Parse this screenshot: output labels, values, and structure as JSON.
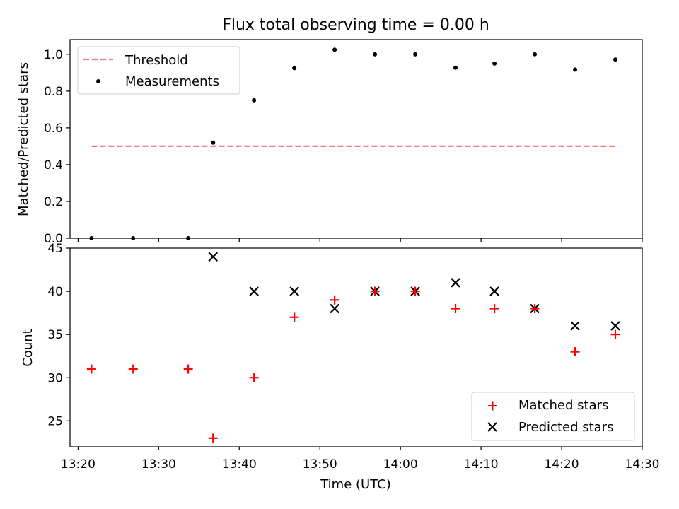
{
  "title": "Flux total observing time = 0.00 h",
  "colors": {
    "threshold": "#f08080",
    "measurement": "#000000",
    "matched": "#ff0000",
    "predicted": "#000000"
  },
  "chart_data": [
    {
      "type": "scatter",
      "ylabel": "Matched/Predicted stars",
      "ylim": [
        0,
        1.08
      ],
      "xlim": [
        "13:19",
        "14:30"
      ],
      "yticks": [
        "0.0",
        "0.2",
        "0.4",
        "0.6",
        "0.8",
        "1.0"
      ],
      "legend": {
        "placement": "top-left",
        "entries": [
          "Threshold",
          "Measurements"
        ]
      },
      "series": [
        {
          "name": "Threshold",
          "style": "dashed-line",
          "x": [
            "13:21:40",
            "14:26:40"
          ],
          "y": [
            0.5,
            0.5
          ]
        },
        {
          "name": "Measurements",
          "style": "dot",
          "x": [
            "13:21:40",
            "13:26:50",
            "13:33:40",
            "13:36:45",
            "13:41:50",
            "13:46:50",
            "13:51:50",
            "13:56:50",
            "14:01:50",
            "14:06:50",
            "14:11:40",
            "14:16:40",
            "14:21:40",
            "14:26:40"
          ],
          "y": [
            0.0,
            0.0,
            0.0,
            0.52,
            0.75,
            0.925,
            1.025,
            1.0,
            1.0,
            0.927,
            0.95,
            1.0,
            0.917,
            0.972
          ]
        }
      ]
    },
    {
      "type": "scatter",
      "xlabel": "Time (UTC)",
      "ylabel": "Count",
      "ylim": [
        22,
        45
      ],
      "xlim": [
        "13:19",
        "14:30"
      ],
      "xticks": [
        "13:20",
        "13:30",
        "13:40",
        "13:50",
        "14:00",
        "14:10",
        "14:20",
        "14:30"
      ],
      "yticks": [
        "25",
        "30",
        "35",
        "40",
        "45"
      ],
      "legend": {
        "placement": "bottom-right",
        "entries": [
          "Matched stars",
          "Predicted stars"
        ]
      },
      "series": [
        {
          "name": "Matched stars",
          "marker": "plus",
          "x": [
            "13:21:40",
            "13:26:50",
            "13:33:40",
            "13:36:45",
            "13:41:50",
            "13:46:50",
            "13:51:50",
            "13:56:50",
            "14:01:50",
            "14:06:50",
            "14:11:40",
            "14:16:40",
            "14:21:40",
            "14:26:40"
          ],
          "y": [
            31,
            31,
            31,
            23,
            30,
            37,
            39,
            40,
            40,
            38,
            38,
            38,
            33,
            35
          ]
        },
        {
          "name": "Predicted stars",
          "marker": "x",
          "x": [
            "13:36:45",
            "13:41:50",
            "13:46:50",
            "13:51:50",
            "13:56:50",
            "14:01:50",
            "14:06:50",
            "14:11:40",
            "14:16:40",
            "14:21:40",
            "14:26:40"
          ],
          "y": [
            44,
            40,
            40,
            38,
            40,
            40,
            41,
            40,
            38,
            36,
            36
          ]
        }
      ]
    }
  ]
}
